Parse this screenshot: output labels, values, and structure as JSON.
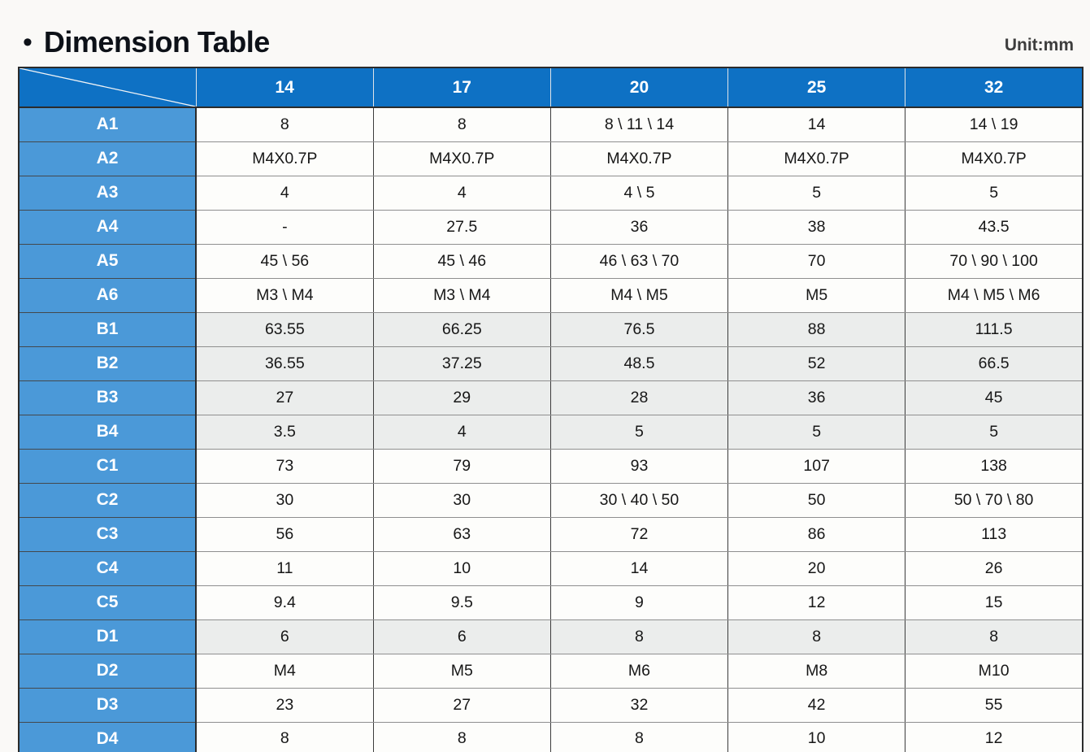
{
  "header": {
    "bullet": "•",
    "title": "Dimension Table",
    "unit_label": "Unit:mm"
  },
  "colors": {
    "header_blue": "#0e71c4",
    "label_blue": "#4b99d8",
    "shaded_row": "#ebedec",
    "page_background": "#faf9f7"
  },
  "table": {
    "columns": [
      "14",
      "17",
      "20",
      "25",
      "32"
    ],
    "rows": [
      {
        "label": "A1",
        "shaded": false,
        "values": [
          "8",
          "8",
          "8 \\ 11 \\ 14",
          "14",
          "14 \\ 19"
        ]
      },
      {
        "label": "A2",
        "shaded": false,
        "values": [
          "M4X0.7P",
          "M4X0.7P",
          "M4X0.7P",
          "M4X0.7P",
          "M4X0.7P"
        ]
      },
      {
        "label": "A3",
        "shaded": false,
        "values": [
          "4",
          "4",
          "4 \\ 5",
          "5",
          "5"
        ]
      },
      {
        "label": "A4",
        "shaded": false,
        "values": [
          "-",
          "27.5",
          "36",
          "38",
          "43.5"
        ]
      },
      {
        "label": "A5",
        "shaded": false,
        "values": [
          "45 \\ 56",
          "45 \\ 46",
          "46 \\ 63 \\ 70",
          "70",
          "70 \\ 90 \\ 100"
        ]
      },
      {
        "label": "A6",
        "shaded": false,
        "values": [
          "M3 \\ M4",
          "M3 \\ M4",
          "M4 \\ M5",
          "M5",
          "M4 \\ M5 \\ M6"
        ]
      },
      {
        "label": "B1",
        "shaded": true,
        "values": [
          "63.55",
          "66.25",
          "76.5",
          "88",
          "111.5"
        ]
      },
      {
        "label": "B2",
        "shaded": true,
        "values": [
          "36.55",
          "37.25",
          "48.5",
          "52",
          "66.5"
        ]
      },
      {
        "label": "B3",
        "shaded": true,
        "values": [
          "27",
          "29",
          "28",
          "36",
          "45"
        ]
      },
      {
        "label": "B4",
        "shaded": true,
        "values": [
          "3.5",
          "4",
          "5",
          "5",
          "5"
        ]
      },
      {
        "label": "C1",
        "shaded": false,
        "values": [
          "73",
          "79",
          "93",
          "107",
          "138"
        ]
      },
      {
        "label": "C2",
        "shaded": false,
        "values": [
          "30",
          "30",
          "30 \\ 40 \\ 50",
          "50",
          "50 \\ 70 \\ 80"
        ]
      },
      {
        "label": "C3",
        "shaded": false,
        "values": [
          "56",
          "63",
          "72",
          "86",
          "113"
        ]
      },
      {
        "label": "C4",
        "shaded": false,
        "values": [
          "11",
          "10",
          "14",
          "20",
          "26"
        ]
      },
      {
        "label": "C5",
        "shaded": false,
        "values": [
          "9.4",
          "9.5",
          "9",
          "12",
          "15"
        ]
      },
      {
        "label": "D1",
        "shaded": true,
        "values": [
          "6",
          "6",
          "8",
          "8",
          "8"
        ]
      },
      {
        "label": "D2",
        "shaded": false,
        "values": [
          "M4",
          "M5",
          "M6",
          "M8",
          "M10"
        ]
      },
      {
        "label": "D3",
        "shaded": false,
        "values": [
          "23",
          "27",
          "32",
          "42",
          "55"
        ]
      },
      {
        "label": "D4",
        "shaded": false,
        "values": [
          "8",
          "8",
          "8",
          "10",
          "12"
        ]
      }
    ]
  }
}
